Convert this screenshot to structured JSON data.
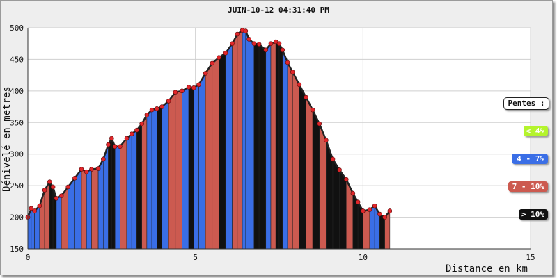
{
  "chart_data": {
    "type": "area",
    "title": "JUIN-10-12 04:31:40 PM",
    "xlabel": "Distance en km",
    "ylabel": "Dénivelé en metres",
    "xlim": [
      0,
      15
    ],
    "ylim": [
      150,
      500
    ],
    "x_ticks": [
      "0",
      "5",
      "10",
      "15"
    ],
    "y_ticks": [
      "150",
      "200",
      "250",
      "300",
      "350",
      "400",
      "450",
      "500"
    ],
    "grid": true,
    "legend_placement": "right",
    "x": [
      0,
      0.1,
      0.2,
      0.35,
      0.5,
      0.65,
      0.75,
      0.85,
      1.0,
      1.2,
      1.4,
      1.6,
      1.75,
      1.9,
      2.1,
      2.25,
      2.4,
      2.5,
      2.6,
      2.75,
      2.95,
      3.1,
      3.25,
      3.4,
      3.55,
      3.7,
      3.85,
      4.0,
      4.2,
      4.4,
      4.6,
      4.8,
      4.95,
      5.1,
      5.3,
      5.5,
      5.7,
      5.9,
      6.1,
      6.25,
      6.4,
      6.5,
      6.6,
      6.75,
      6.9,
      7.1,
      7.25,
      7.4,
      7.5,
      7.6,
      7.75,
      7.9,
      8.1,
      8.3,
      8.5,
      8.7,
      8.9,
      9.1,
      9.3,
      9.5,
      9.7,
      9.85,
      10.0,
      10.2,
      10.35,
      10.5,
      10.65,
      10.8
    ],
    "elevation": [
      200,
      214,
      210,
      218,
      243,
      256,
      248,
      230,
      234,
      248,
      262,
      276,
      272,
      276,
      277,
      292,
      315,
      325,
      312,
      312,
      325,
      332,
      338,
      348,
      362,
      370,
      372,
      375,
      384,
      398,
      400,
      406,
      405,
      410,
      428,
      444,
      453,
      460,
      475,
      490,
      496,
      495,
      482,
      475,
      474,
      465,
      475,
      478,
      475,
      465,
      445,
      430,
      410,
      390,
      370,
      348,
      322,
      292,
      275,
      260,
      238,
      224,
      210,
      212,
      218,
      205,
      200,
      210
    ],
    "slope_class": [
      1,
      1,
      1,
      2,
      2,
      3,
      3,
      1,
      2,
      1,
      1,
      2,
      1,
      2,
      1,
      1,
      3,
      3,
      1,
      2,
      1,
      1,
      3,
      2,
      1,
      1,
      3,
      1,
      2,
      2,
      1,
      3,
      1,
      1,
      2,
      2,
      3,
      1,
      2,
      2,
      1,
      1,
      1,
      3,
      3,
      1,
      2,
      3,
      3,
      1,
      2,
      2,
      3,
      2,
      3,
      2,
      3,
      3,
      3,
      2,
      3,
      3,
      2,
      1,
      1,
      3,
      2,
      1
    ],
    "series": [
      {
        "name": "< 4%",
        "color": "#b4f42c"
      },
      {
        "name": "4 - 7%",
        "color": "#3a6ee6"
      },
      {
        "name": "7 - 10%",
        "color": "#cc5a50"
      },
      {
        "name": "> 10%",
        "color": "#111111"
      }
    ],
    "legend_title": "Pentes :"
  }
}
